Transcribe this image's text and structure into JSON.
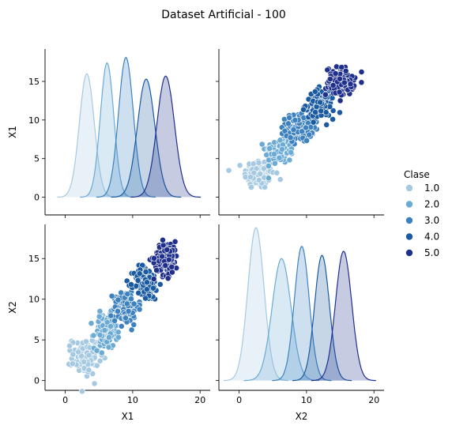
{
  "figure_title": "Dataset Artificial - 100",
  "legend": {
    "title": "Clase",
    "placement": "right",
    "entries": [
      {
        "label": "1.0",
        "color": "#a6c9e2"
      },
      {
        "label": "2.0",
        "color": "#6aaad4"
      },
      {
        "label": "3.0",
        "color": "#3d82bf"
      },
      {
        "label": "4.0",
        "color": "#1a5aa0"
      },
      {
        "label": "5.0",
        "color": "#1f2f8c"
      }
    ]
  },
  "chart_data": [
    {
      "type": "area",
      "subtype": "kde",
      "panel": "X1-diagonal",
      "xlabel": "",
      "ylabel": "X1",
      "xlim": [
        -3,
        21.5
      ],
      "ylim": [
        -2.3,
        19.2
      ],
      "y_ticks": [
        0,
        5,
        10,
        15
      ],
      "series": [
        {
          "name": "1.0",
          "mu": 3.2,
          "sigma": 1.1,
          "peak": 16.0,
          "color": "#a6c9e2"
        },
        {
          "name": "2.0",
          "mu": 6.2,
          "sigma": 1.0,
          "peak": 17.4,
          "color": "#6aaad4"
        },
        {
          "name": "3.0",
          "mu": 9.0,
          "sigma": 1.1,
          "peak": 18.1,
          "color": "#3d82bf"
        },
        {
          "name": "4.0",
          "mu": 12.0,
          "sigma": 1.3,
          "peak": 15.3,
          "color": "#1a5aa0"
        },
        {
          "name": "5.0",
          "mu": 14.9,
          "sigma": 1.3,
          "peak": 15.7,
          "color": "#1f2f8c"
        }
      ]
    },
    {
      "type": "scatter",
      "panel": "X1-vs-X2",
      "xlabel": "",
      "ylabel": "",
      "xlim": [
        -3,
        21.5
      ],
      "ylim": [
        -2.3,
        19.2
      ],
      "x_variable": "X2",
      "y_variable": "X1",
      "points_per_class": 120,
      "series": [
        {
          "name": "1.0",
          "center": [
            3.0,
            3.0
          ],
          "spread": [
            1.6,
            1.4
          ],
          "color": "#a6c9e2"
        },
        {
          "name": "2.0",
          "center": [
            6.0,
            6.0
          ],
          "spread": [
            1.5,
            1.2
          ],
          "color": "#6aaad4"
        },
        {
          "name": "3.0",
          "center": [
            9.0,
            9.0
          ],
          "spread": [
            1.5,
            1.3
          ],
          "color": "#3d82bf"
        },
        {
          "name": "4.0",
          "center": [
            12.0,
            12.0
          ],
          "spread": [
            1.5,
            1.3
          ],
          "color": "#1a5aa0"
        },
        {
          "name": "5.0",
          "center": [
            15.0,
            15.0
          ],
          "spread": [
            1.5,
            1.3
          ],
          "color": "#1f2f8c"
        }
      ]
    },
    {
      "type": "scatter",
      "panel": "X2-vs-X1",
      "xlabel": "X1",
      "ylabel": "X2",
      "xlim": [
        -3,
        21.5
      ],
      "ylim": [
        -1.2,
        19.2
      ],
      "x_ticks": [
        0,
        10,
        20
      ],
      "y_ticks": [
        0,
        5,
        10,
        15
      ],
      "x_variable": "X1",
      "y_variable": "X2",
      "points_per_class": 120,
      "series": [
        {
          "name": "1.0",
          "center": [
            3.0,
            3.0
          ],
          "spread": [
            1.4,
            1.6
          ],
          "color": "#a6c9e2"
        },
        {
          "name": "2.0",
          "center": [
            6.0,
            6.0
          ],
          "spread": [
            1.2,
            1.5
          ],
          "color": "#6aaad4"
        },
        {
          "name": "3.0",
          "center": [
            9.0,
            9.0
          ],
          "spread": [
            1.3,
            1.5
          ],
          "color": "#3d82bf"
        },
        {
          "name": "4.0",
          "center": [
            12.0,
            12.0
          ],
          "spread": [
            1.3,
            1.5
          ],
          "color": "#1a5aa0"
        },
        {
          "name": "5.0",
          "center": [
            15.0,
            15.0
          ],
          "spread": [
            1.3,
            1.5
          ],
          "color": "#1f2f8c"
        }
      ]
    },
    {
      "type": "area",
      "subtype": "kde",
      "panel": "X2-diagonal",
      "xlabel": "X2",
      "ylabel": "",
      "xlim": [
        -3,
        21.5
      ],
      "ylim": [
        -1.2,
        19.2
      ],
      "x_ticks": [
        0,
        10,
        20
      ],
      "series": [
        {
          "name": "1.0",
          "mu": 2.5,
          "sigma": 1.2,
          "peak": 18.8,
          "color": "#a6c9e2"
        },
        {
          "name": "2.0",
          "mu": 6.3,
          "sigma": 1.4,
          "peak": 15.0,
          "color": "#6aaad4"
        },
        {
          "name": "3.0",
          "mu": 9.3,
          "sigma": 1.1,
          "peak": 16.5,
          "color": "#3d82bf"
        },
        {
          "name": "4.0",
          "mu": 12.3,
          "sigma": 1.1,
          "peak": 15.4,
          "color": "#1a5aa0"
        },
        {
          "name": "5.0",
          "mu": 15.5,
          "sigma": 1.2,
          "peak": 15.9,
          "color": "#1f2f8c"
        }
      ]
    }
  ]
}
